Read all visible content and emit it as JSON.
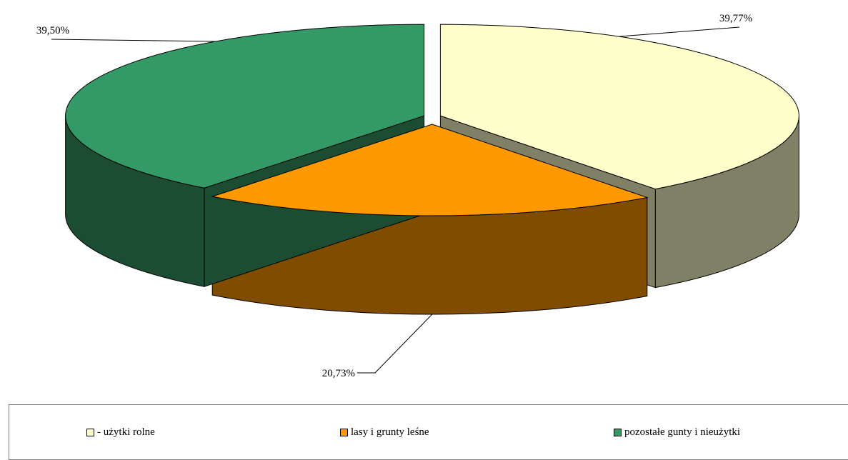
{
  "chart_data": {
    "type": "pie",
    "title": "",
    "categories": [
      "- użytki rolne",
      "lasy i grunty leśne",
      "pozostałe gunty i nieużytki"
    ],
    "values": [
      39.77,
      20.73,
      39.5
    ],
    "data_labels": [
      "39,77%",
      "20,73%",
      "39,50%"
    ],
    "colors": {
      "top": [
        "#FFFFCC",
        "#FF9900",
        "#339966"
      ],
      "side": [
        "#808066",
        "#804D00",
        "#1C4D33"
      ]
    },
    "three_d": true,
    "exploded": true,
    "legend_position": "bottom"
  }
}
